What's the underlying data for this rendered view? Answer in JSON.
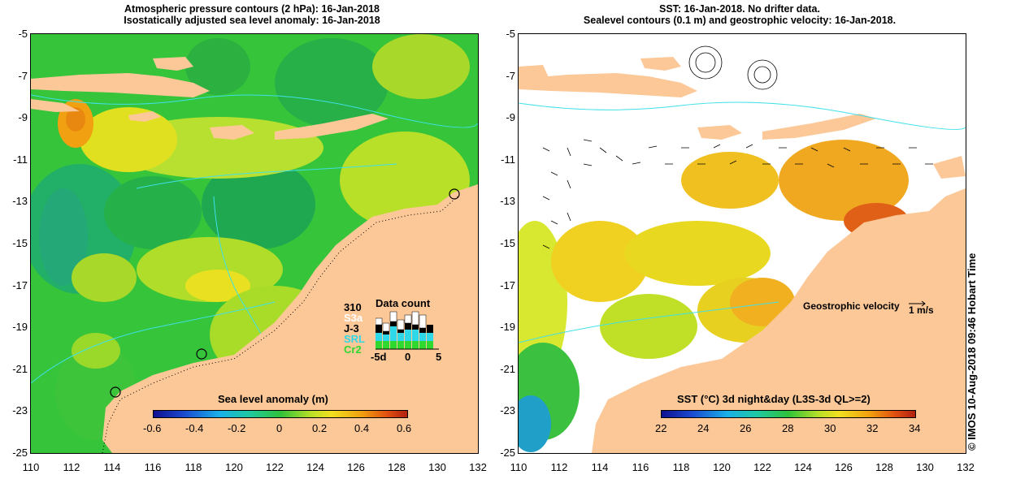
{
  "left_panel": {
    "title_line1": "Atmospheric pressure contours (2 hPa): 16-Jan-2018",
    "title_line2": "Isostatically adjusted sea level anomaly: 16-Jan-2018",
    "colorbar_label": "Sea level anomaly (m)",
    "colorbar_ticks": [
      "-0.6",
      "-0.4",
      "-0.2",
      "0",
      "0.2",
      "0.4",
      "0.6"
    ],
    "data_count": {
      "title": "Data count",
      "max": "310",
      "series": [
        {
          "label": "S3a",
          "color": "#ffffff"
        },
        {
          "label": "J-3",
          "color": "#000000"
        },
        {
          "label": "SRL",
          "color": "#2fd8e8"
        },
        {
          "label": "Cr2",
          "color": "#2fd82f"
        }
      ],
      "axis_ticks": [
        "-5d",
        "0",
        "5"
      ]
    }
  },
  "right_panel": {
    "title_line1": "SST: 16-Jan-2018. No drifter data.",
    "title_line2": "Sealevel contours (0.1 m) and geostrophic velocity: 16-Jan-2018.",
    "velocity_label": "Geostrophic velocity",
    "velocity_scale": "1 m/s",
    "colorbar_label": "SST (°C) 3d night&day (L3S-3d QL>=2)",
    "colorbar_ticks": [
      "22",
      "24",
      "26",
      "28",
      "30",
      "32",
      "34"
    ]
  },
  "axes": {
    "x_ticks": [
      "110",
      "112",
      "114",
      "116",
      "118",
      "120",
      "122",
      "124",
      "126",
      "128",
      "130",
      "132"
    ],
    "y_ticks": [
      "-5",
      "-7",
      "-9",
      "-11",
      "-13",
      "-15",
      "-17",
      "-19",
      "-21",
      "-23",
      "-25"
    ]
  },
  "credit": "©  IMOS 10-Aug-2018 09:46 Hobart Time",
  "colors": {
    "land": "#fcc898",
    "ocean_base": "#2fc23a",
    "coast_line": "#3fe0e8"
  }
}
